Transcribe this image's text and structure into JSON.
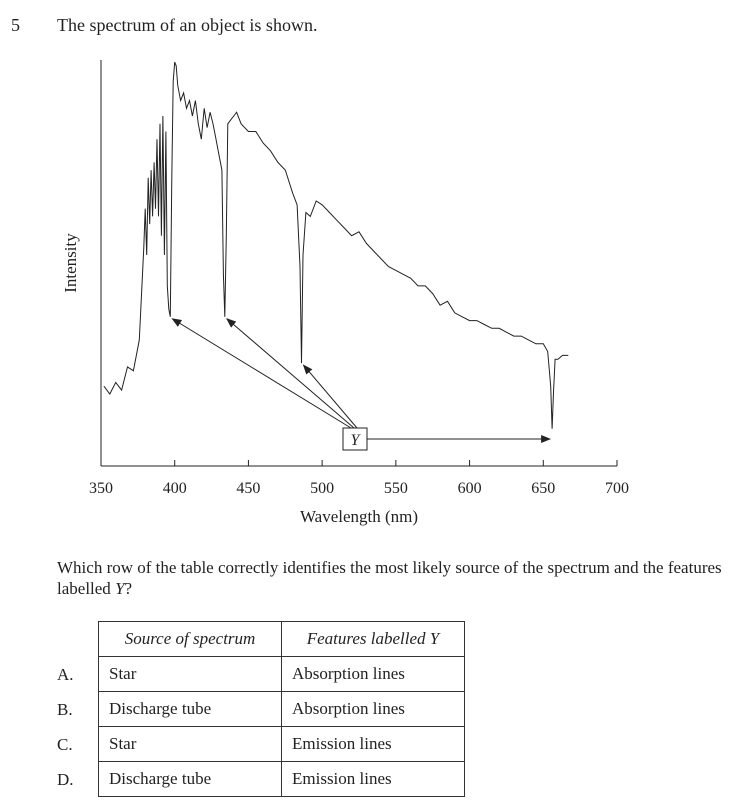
{
  "question": {
    "number": "5",
    "stem": "The spectrum of an object is shown.",
    "prompt_pre": "Which row of the table correctly identifies the most likely source of the spectrum and the features labelled ",
    "prompt_var": "Y",
    "prompt_post": "?"
  },
  "chart_data": {
    "type": "line",
    "xlabel": "Wavelength (nm)",
    "ylabel": "Intensity",
    "xlim": [
      350,
      700
    ],
    "xticks": [
      "350",
      "400",
      "450",
      "500",
      "550",
      "600",
      "650",
      "700"
    ],
    "ylim": [
      0,
      1
    ],
    "label_box": "Y",
    "absorption_lines_nm": [
      397,
      434,
      486,
      656
    ],
    "series": [
      {
        "x": [
          352,
          356,
          360,
          364,
          368,
          372,
          376,
          378,
          379,
          380,
          381,
          382,
          383,
          384,
          385,
          386,
          387,
          388,
          389,
          390,
          391,
          392,
          393,
          394,
          395,
          396,
          397,
          398,
          399,
          400,
          401,
          402,
          404,
          406,
          408,
          410,
          412,
          414,
          416,
          418,
          420,
          422,
          424,
          426,
          428,
          430,
          432,
          433,
          434,
          435,
          436,
          438,
          440,
          442,
          445,
          450,
          455,
          460,
          465,
          470,
          475,
          480,
          483,
          485,
          486,
          487,
          489,
          492,
          496,
          500,
          505,
          510,
          515,
          520,
          525,
          530,
          535,
          540,
          545,
          550,
          555,
          560,
          565,
          570,
          575,
          580,
          585,
          590,
          595,
          600,
          605,
          610,
          615,
          620,
          625,
          630,
          635,
          640,
          645,
          650,
          653,
          655,
          656,
          657,
          658,
          660,
          663,
          667
        ],
        "y": [
          0.16,
          0.14,
          0.17,
          0.15,
          0.21,
          0.2,
          0.28,
          0.44,
          0.52,
          0.62,
          0.5,
          0.7,
          0.58,
          0.72,
          0.6,
          0.74,
          0.62,
          0.8,
          0.6,
          0.84,
          0.55,
          0.86,
          0.5,
          0.82,
          0.42,
          0.36,
          0.34,
          0.7,
          0.95,
          1.0,
          0.99,
          0.94,
          0.9,
          0.92,
          0.88,
          0.9,
          0.86,
          0.9,
          0.84,
          0.8,
          0.88,
          0.83,
          0.87,
          0.84,
          0.8,
          0.76,
          0.72,
          0.45,
          0.34,
          0.55,
          0.84,
          0.85,
          0.86,
          0.87,
          0.84,
          0.82,
          0.82,
          0.79,
          0.77,
          0.74,
          0.72,
          0.66,
          0.63,
          0.47,
          0.22,
          0.5,
          0.61,
          0.6,
          0.64,
          0.63,
          0.61,
          0.59,
          0.57,
          0.55,
          0.56,
          0.53,
          0.51,
          0.49,
          0.47,
          0.46,
          0.45,
          0.44,
          0.42,
          0.42,
          0.4,
          0.37,
          0.38,
          0.35,
          0.34,
          0.33,
          0.33,
          0.32,
          0.31,
          0.31,
          0.3,
          0.29,
          0.29,
          0.28,
          0.27,
          0.27,
          0.25,
          0.16,
          0.05,
          0.15,
          0.23,
          0.23,
          0.24,
          0.24
        ]
      }
    ]
  },
  "table": {
    "headers": [
      "Source of spectrum",
      "Features labelled Y"
    ],
    "rows": [
      {
        "letter": "A.",
        "source": "Star",
        "feature": "Absorption lines"
      },
      {
        "letter": "B.",
        "source": "Discharge tube",
        "feature": "Absorption lines"
      },
      {
        "letter": "C.",
        "source": "Star",
        "feature": "Emission lines"
      },
      {
        "letter": "D.",
        "source": "Discharge tube",
        "feature": "Emission lines"
      }
    ]
  }
}
